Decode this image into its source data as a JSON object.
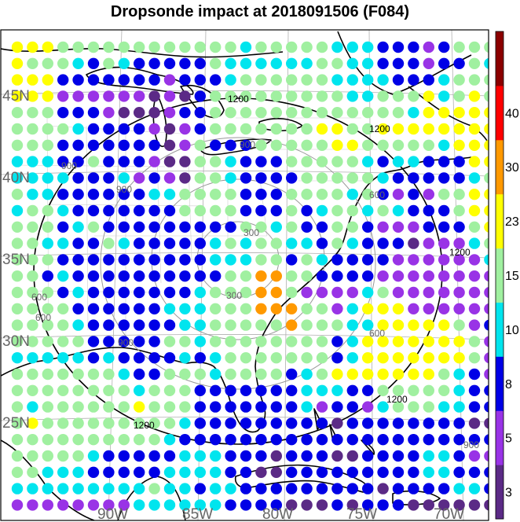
{
  "title": "Dropsonde impact at 2018091506 (F084)",
  "map": {
    "lat_labels": [
      "45N",
      "40N",
      "35N",
      "30N",
      "25N"
    ],
    "lon_labels": [
      "90W",
      "85W",
      "80W",
      "75W",
      "70W"
    ],
    "contour_labels": [
      {
        "text": "1200",
        "color": "#000000"
      },
      {
        "text": "900",
        "color": "#666666"
      },
      {
        "text": "1200",
        "color": "#000000"
      },
      {
        "text": "900",
        "color": "#666666"
      },
      {
        "text": "900",
        "color": "#666666"
      },
      {
        "text": "300",
        "color": "#666666"
      },
      {
        "text": "600",
        "color": "#666666"
      },
      {
        "text": "1200",
        "color": "#000000"
      },
      {
        "text": "600",
        "color": "#666666"
      },
      {
        "text": "300",
        "color": "#666666"
      },
      {
        "text": "600",
        "color": "#666666"
      },
      {
        "text": "1200",
        "color": "#000000"
      },
      {
        "text": "600",
        "color": "#666666"
      },
      {
        "text": "900",
        "color": "#666666"
      },
      {
        "text": "1200",
        "color": "#000000"
      },
      {
        "text": "900",
        "color": "#666666"
      }
    ],
    "colors": {
      "map_background": "#ffffff",
      "land_outline": "#000000",
      "grid_line": "#b0b0b0",
      "county_line": "#bdbdbd"
    }
  },
  "colorbar": {
    "tick_labels": [
      "3",
      "5",
      "8",
      "10",
      "15",
      "23",
      "30",
      "40"
    ],
    "bins": [
      {
        "min": 0,
        "max": 3,
        "color": "#5b2a86"
      },
      {
        "min": 3,
        "max": 5,
        "color": "#9933e6"
      },
      {
        "min": 5,
        "max": 8,
        "color": "#0000e6"
      },
      {
        "min": 8,
        "max": 10,
        "color": "#00e5ee"
      },
      {
        "min": 10,
        "max": 15,
        "color": "#a0f0a0"
      },
      {
        "min": 15,
        "max": 23,
        "color": "#ffff00"
      },
      {
        "min": 23,
        "max": 30,
        "color": "#ff9900"
      },
      {
        "min": 30,
        "max": 40,
        "color": "#ff0000"
      },
      {
        "min": 40,
        "max": 50,
        "color": "#8b0000"
      }
    ]
  },
  "impact_grid": {
    "legend_codes": {
      "P": "0-3",
      "V": "3-5",
      "B": "5-8",
      "C": "8-10",
      "G": "10-15",
      "Y": "15-23",
      "O": "23-30"
    },
    "rows": [
      "YYYGGGGGGGGGGGGCGGGGGCCCBBBVBGGGY",
      "YGGGCBGCBBBBBGCCCCCCGGCCBBBVBBGCG",
      "YYYBBBBBBBVBBBCGGGGGGCCCCBBBCGGGY",
      "YYYVVVVVVPVPBGGGGGGGGGCCGGGYCGYGY",
      "GGGBBBVPPPVBBGGGGGGGGGGGGGCYYYYYY",
      "GGGGCBBBBVPVBGGGGGGGYYGGYYYYYYYYC",
      "GGGBBBBBBBPVGBBBGGGGGYYGGGGGCYYYY",
      "CCCBBGBBBVPPGGCBBBGGGGGCBCCBBBYYG",
      "CCCCBBBCVBVPGGCBBBBGGGGGCBBBBBCGG",
      "GCCBBBBBBCCGGGGBBBGGGGCGBVBVGGYYY",
      "CGGCBBBBBBBGGGGBBBGBCGGCGCBBBGYYY",
      "GGGBCGBBBBBBBBBGGCGBBGGBVVVBBBGYY",
      "GGCCBBGCBBBBBCGCGGCCBGCBBBPVVVCGY",
      "GGGBBBBBBBBBBCCCGGBGCBBBBVVVVVVCY",
      "GGBCBBBBBBBBBBGGOOGGBBBBVVVVVVVVG",
      "GGGBCBBBBBBBCGGGOOGVVVVCGVVVVVVVG",
      "GGGGBBBBBBCCCGGGOOOGGVCYYYVVVVVVB",
      "GGGGCBBBBBBCCGGGGGOGGGCCYYYYYGVBB",
      "GGGGGBBBBBGGCGGGGGGGGBCYYYYYYYGVB",
      "CCCCCBCBBBBCBCGGGGGGGBCYYYYYYYGVB",
      "GGGGGGGCBBGGGCGGGGBCGYYYYYYYGCBVV",
      "GGGGGGGGCGGGBBBBBBBCCCBBGGGGGCBBB",
      "GCGGGGGGYGGGBBBBBBBCVBBVCGGGCCBBB",
      "GYGGGGGGGGGCBBBBBBBBBPBBBBBBBBPPB",
      "GGGGGGGGGGCBBBBBBBBBBBBBBBBBBBBBB",
      "GGGGGCBBBBBCCCBBBPBBBPPBBBBCCBVVB",
      "GGCCCBBBBBCCCCBBPPBBBBBBBBBCCBBBB",
      "CCCCCCCCCGCCBCCBBBBBBBBBPBBBBCCBB",
      "VVVVVVVVCCCCCCBBBBPPPBPBBBPPPPPPP"
    ]
  }
}
